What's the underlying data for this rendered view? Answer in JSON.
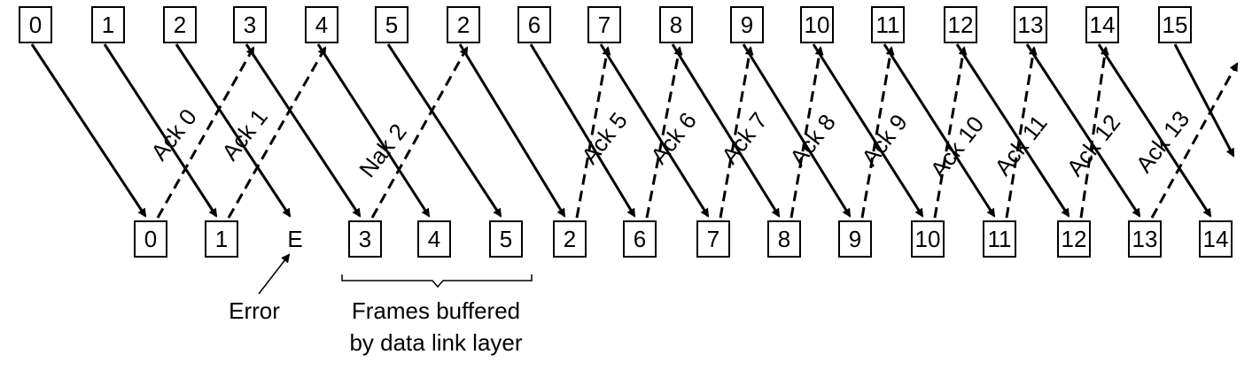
{
  "sender_frames": [
    "0",
    "1",
    "2",
    "3",
    "4",
    "5",
    "2",
    "6",
    "7",
    "8",
    "9",
    "10",
    "11",
    "12",
    "13",
    "14",
    "15"
  ],
  "receiver_frames": [
    "0",
    "1",
    "E",
    "3",
    "4",
    "5",
    "2",
    "6",
    "7",
    "8",
    "9",
    "10",
    "11",
    "12",
    "13",
    "14"
  ],
  "ack_labels": [
    "Ack 0",
    "Ack 1",
    "Nak 2",
    "Ack 5",
    "Ack 6",
    "Ack 7",
    "Ack 8",
    "Ack 9",
    "Ack 10",
    "Ack 11",
    "Ack 12",
    "Ack 13"
  ],
  "error_label": "Error",
  "buffer_caption": [
    "Frames buffered",
    "by data link layer"
  ],
  "colors": {
    "stroke": "#000000",
    "background": "#ffffff"
  }
}
